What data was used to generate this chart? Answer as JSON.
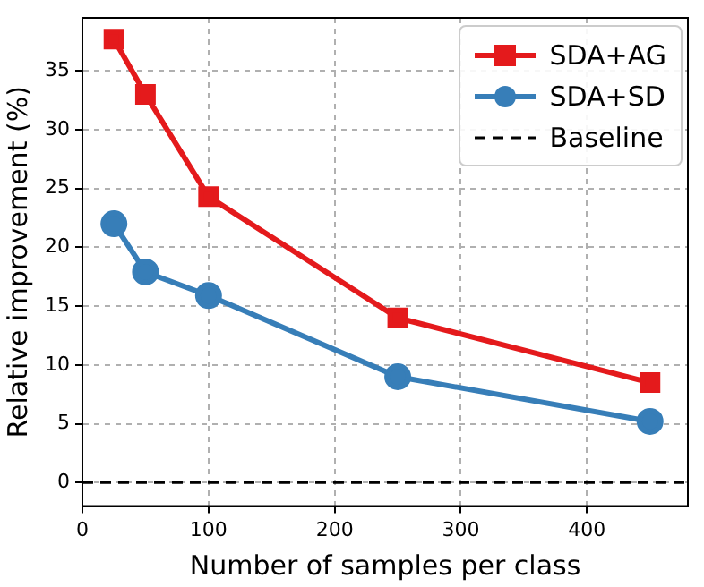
{
  "chart_data": {
    "type": "line",
    "xlabel": "Number of samples per class",
    "ylabel": "Relative improvement (%)",
    "xlim": [
      0,
      480
    ],
    "xticks": [
      0,
      100,
      200,
      300,
      400
    ],
    "ylim": [
      -2,
      39.5
    ],
    "yticks": [
      0,
      5,
      10,
      15,
      20,
      25,
      30,
      35
    ],
    "grid": true,
    "legend": "top right",
    "line_style": "solid",
    "series": [
      {
        "name": "SDA+AG",
        "color": "#e41a1c",
        "marker": "square",
        "x": [
          25,
          50,
          100,
          250,
          450
        ],
        "values": [
          37.7,
          33.0,
          24.3,
          14.0,
          8.5
        ]
      },
      {
        "name": "SDA+SD",
        "color": "#377eb8",
        "marker": "circle",
        "x": [
          25,
          50,
          100,
          250,
          450
        ],
        "values": [
          22.0,
          17.9,
          15.9,
          9.0,
          5.2
        ]
      }
    ],
    "ref_lines": [
      {
        "axis": "y",
        "value": 0,
        "label": "Baseline",
        "color": "#000000",
        "line_style": "dashed"
      }
    ]
  }
}
